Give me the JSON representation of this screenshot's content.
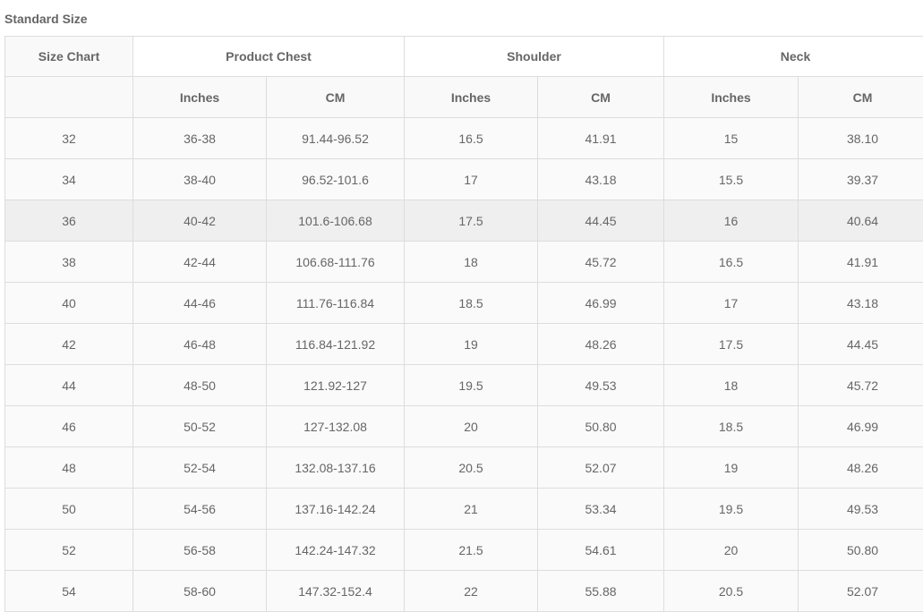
{
  "title": "Standard Size",
  "headers": {
    "size_chart": "Size Chart",
    "groups": [
      "Product Chest",
      "Shoulder",
      "Neck"
    ],
    "sub": [
      "Inches",
      "CM",
      "Inches",
      "CM",
      "Inches",
      "CM"
    ]
  },
  "rows": [
    [
      "32",
      "36-38",
      "91.44-96.52",
      "16.5",
      "41.91",
      "15",
      "38.10"
    ],
    [
      "34",
      "38-40",
      "96.52-101.6",
      "17",
      "43.18",
      "15.5",
      "39.37"
    ],
    [
      "36",
      "40-42",
      "101.6-106.68",
      "17.5",
      "44.45",
      "16",
      "40.64"
    ],
    [
      "38",
      "42-44",
      "106.68-111.76",
      "18",
      "45.72",
      "16.5",
      "41.91"
    ],
    [
      "40",
      "44-46",
      "111.76-116.84",
      "18.5",
      "46.99",
      "17",
      "43.18"
    ],
    [
      "42",
      "46-48",
      "116.84-121.92",
      "19",
      "48.26",
      "17.5",
      "44.45"
    ],
    [
      "44",
      "48-50",
      "121.92-127",
      "19.5",
      "49.53",
      "18",
      "45.72"
    ],
    [
      "46",
      "50-52",
      "127-132.08",
      "20",
      "50.80",
      "18.5",
      "46.99"
    ],
    [
      "48",
      "52-54",
      "132.08-137.16",
      "20.5",
      "52.07",
      "19",
      "48.26"
    ],
    [
      "50",
      "54-56",
      "137.16-142.24",
      "21",
      "53.34",
      "19.5",
      "49.53"
    ],
    [
      "52",
      "56-58",
      "142.24-147.32",
      "21.5",
      "54.61",
      "20",
      "50.80"
    ],
    [
      "54",
      "58-60",
      "147.32-152.4",
      "22",
      "55.88",
      "20.5",
      "52.07"
    ]
  ],
  "highlighted_row": "36"
}
